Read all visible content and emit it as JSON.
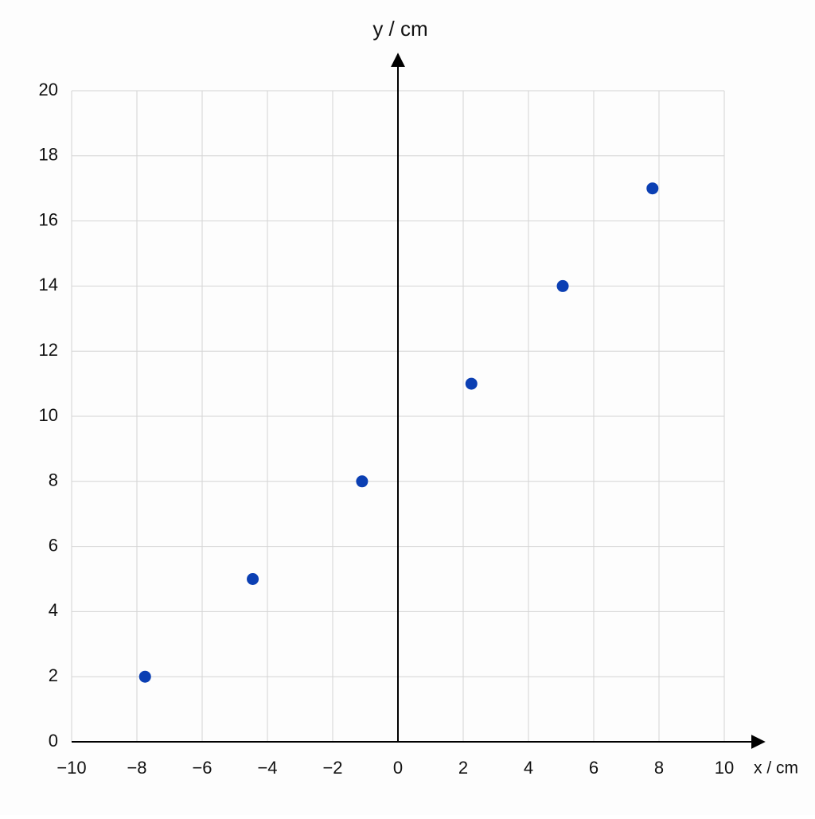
{
  "chart_data": {
    "type": "scatter",
    "x_label": "x / cm",
    "y_label": "y / cm",
    "series": [
      {
        "color": "#0b3fb3",
        "x": [
          -7.75,
          -4.45,
          -1.1,
          2.25,
          5.05,
          7.8
        ],
        "values": [
          2,
          5,
          8,
          11,
          14,
          17
        ]
      }
    ],
    "xlim": [
      -10,
      10
    ],
    "xticks": [
      {
        "value": -10,
        "label": "−10"
      },
      {
        "value": -8,
        "label": "−8"
      },
      {
        "value": -6,
        "label": "−6"
      },
      {
        "value": -4,
        "label": "−4"
      },
      {
        "value": -2,
        "label": "−2"
      },
      0,
      2,
      4,
      6,
      8,
      10
    ],
    "ylim": [
      0,
      20
    ],
    "yticks": [
      0,
      2,
      4,
      6,
      8,
      10,
      12,
      14,
      16,
      18,
      20
    ],
    "grid": true
  }
}
